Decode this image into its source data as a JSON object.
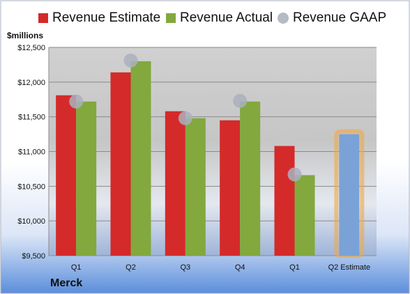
{
  "chart_data": {
    "type": "bar",
    "company": "Merck",
    "units_label": "$millions",
    "categories": [
      "Q1",
      "Q2",
      "Q3",
      "Q4",
      "Q1",
      "Q2 Estimate"
    ],
    "series": [
      {
        "name": "Revenue Estimate",
        "color": "#d42a2a",
        "values": [
          11810,
          12140,
          11580,
          11450,
          11080,
          null
        ]
      },
      {
        "name": "Revenue Actual",
        "color": "#82a83e",
        "values": [
          11720,
          12300,
          11480,
          11720,
          10660,
          null
        ]
      },
      {
        "name": "Revenue GAAP",
        "color": "#aab0bd",
        "values": [
          11720,
          12310,
          11480,
          11730,
          10670,
          null
        ]
      }
    ],
    "q2_estimate": {
      "value": 11250,
      "color": "#7ba2d6",
      "glow_color": "#f0a844"
    },
    "ylim": [
      9500,
      12500
    ],
    "yticks": [
      9500,
      10000,
      10500,
      11000,
      11500,
      12000,
      12500
    ],
    "ytick_labels": [
      "$9,500",
      "$10,000",
      "$10,500",
      "$11,000",
      "$11,500",
      "$12,000",
      "$12,500"
    ],
    "grid": true,
    "legend_position": "top"
  }
}
